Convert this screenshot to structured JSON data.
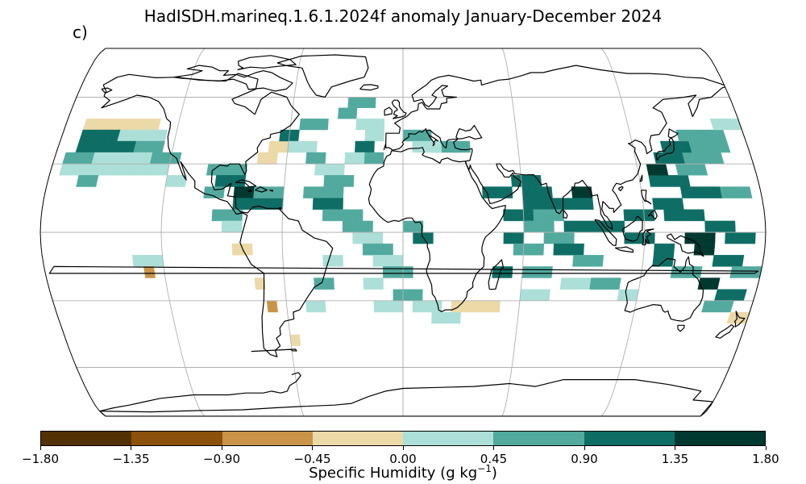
{
  "title": "HadISDH.marineq.1.6.1.2024f anomaly January-December 2024",
  "panel_label": "c)",
  "colorbar": {
    "label_main": "Specific Humidity (g kg",
    "label_exp": "−1",
    "label_close": ")",
    "ticks": [
      "−1.80",
      "−1.35",
      "−0.90",
      "−0.45",
      "0.00",
      "0.45",
      "0.90",
      "1.35",
      "1.80"
    ],
    "colors": [
      "#543005",
      "#8c510a",
      "#c99448",
      "#ecd9a8",
      "#acdfd7",
      "#52aa9f",
      "#0e6e65",
      "#013830"
    ]
  },
  "map": {
    "projection": "robinson",
    "grid": true,
    "coast_color": "#000000",
    "grid_color": "#b0b0b0"
  }
}
